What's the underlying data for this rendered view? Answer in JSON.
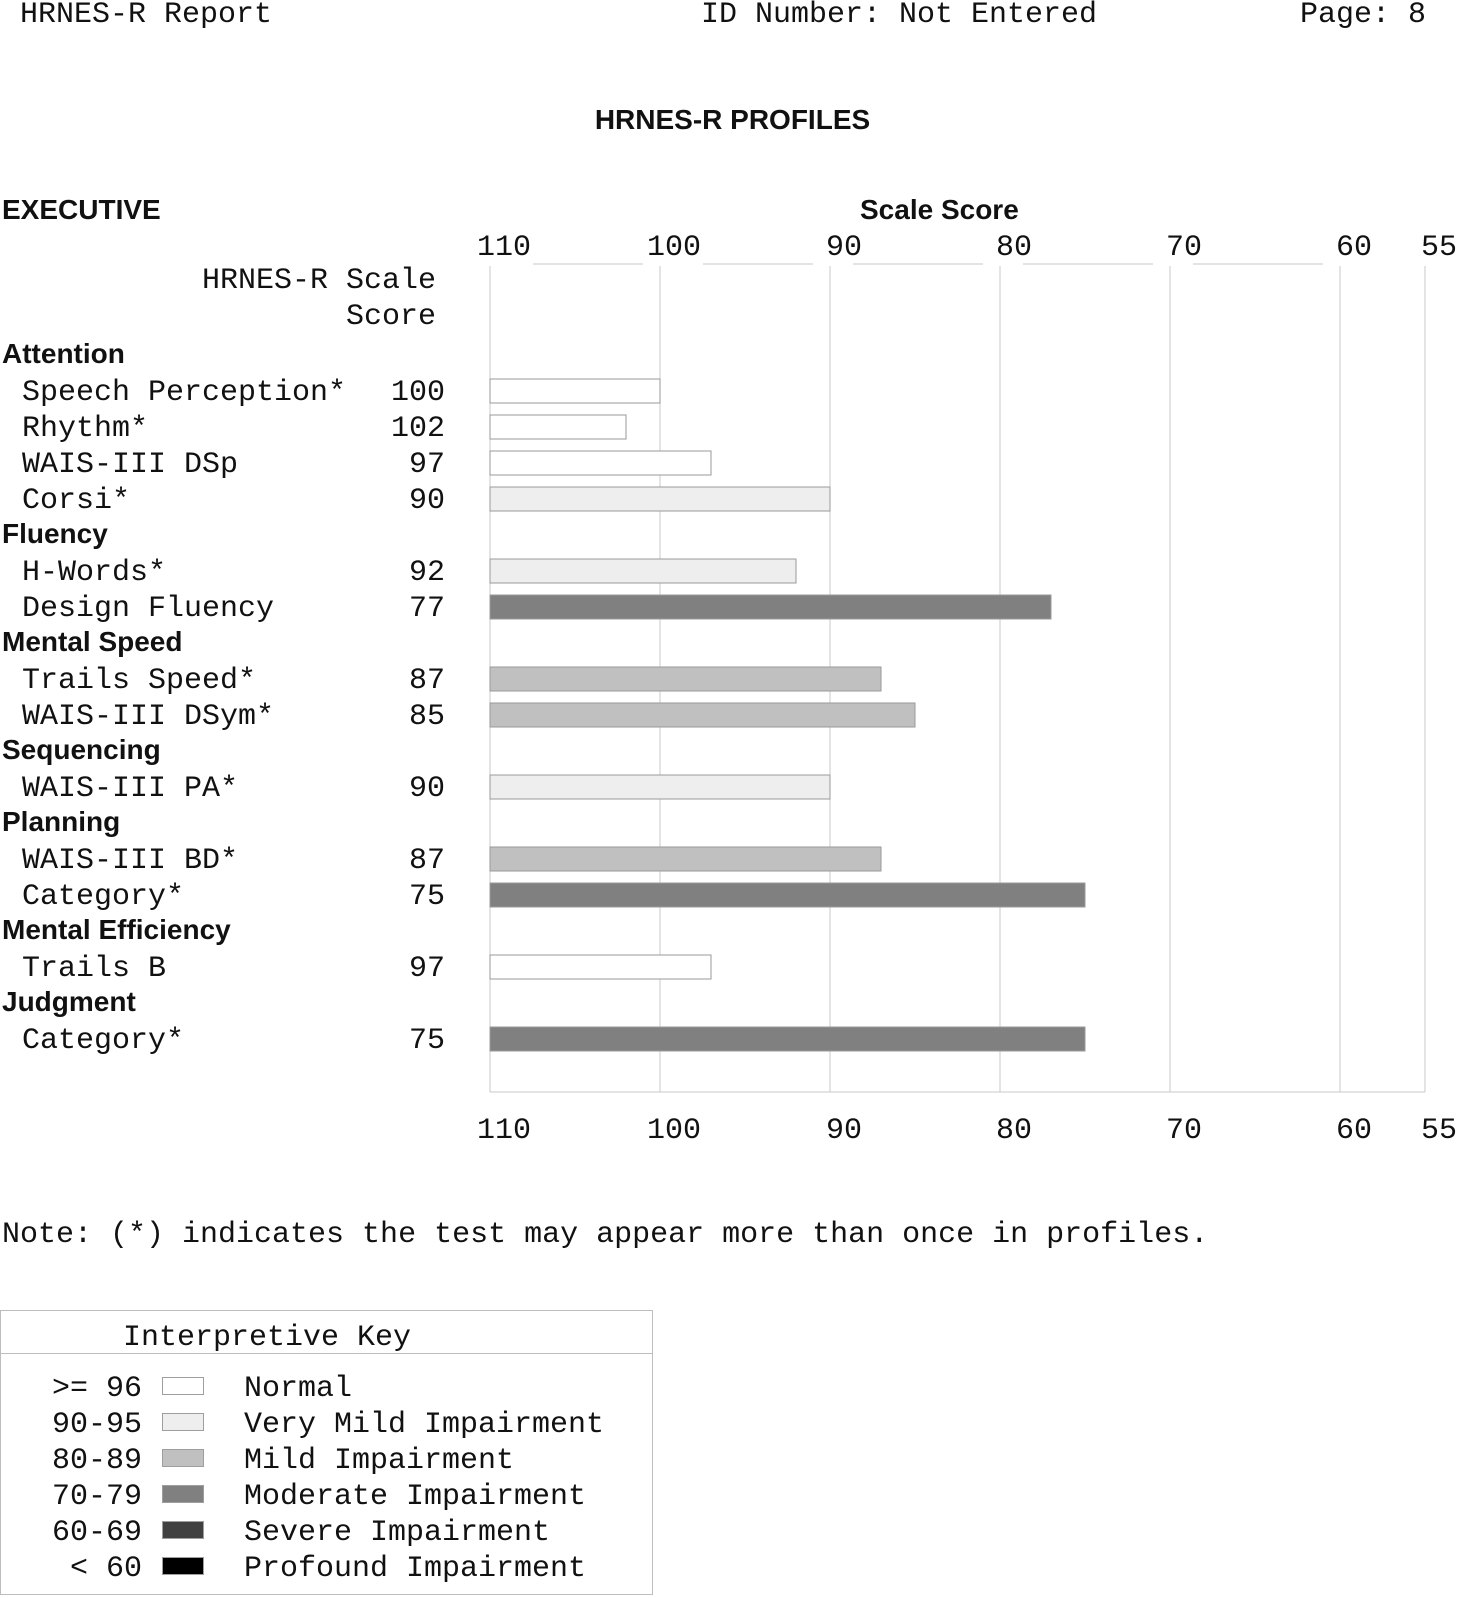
{
  "header": {
    "report": "HRNES-R Report",
    "id_label": "ID Number: Not Entered",
    "page_label": "Page: 8"
  },
  "title": "HRNES-R PROFILES",
  "section": "EXECUTIVE",
  "axis_title": "Scale Score",
  "column_header": [
    "HRNES-R Scale",
    "Score"
  ],
  "note": "Note: (*) indicates the test may appear more than once in profiles.",
  "colors": {
    "normal": "#ffffff",
    "very_mild": "#eeeeee",
    "mild": "#c0c0c0",
    "moderate": "#808080",
    "severe": "#404040",
    "profound": "#000000",
    "gridline": "#c8c8c8",
    "bar_border": "#9a9a9a"
  },
  "chart_data": {
    "type": "bar",
    "orientation": "horizontal",
    "x_axis": {
      "ticks": [
        110,
        100,
        90,
        80,
        70,
        60,
        55
      ],
      "min": 110,
      "max": 55,
      "reversed": true,
      "shown": [
        "top",
        "bottom"
      ]
    },
    "grid": true,
    "groups": [
      {
        "name": "Attention",
        "items": [
          {
            "label": "Speech Perception*",
            "value": 100
          },
          {
            "label": "Rhythm*",
            "value": 102
          },
          {
            "label": "WAIS-III DSp",
            "value": 97
          },
          {
            "label": "Corsi*",
            "value": 90
          }
        ]
      },
      {
        "name": "Fluency",
        "items": [
          {
            "label": "H-Words*",
            "value": 92
          },
          {
            "label": "Design Fluency",
            "value": 77
          }
        ]
      },
      {
        "name": "Mental Speed",
        "items": [
          {
            "label": "Trails Speed*",
            "value": 87
          },
          {
            "label": "WAIS-III DSym*",
            "value": 85
          }
        ]
      },
      {
        "name": "Sequencing",
        "items": [
          {
            "label": "WAIS-III PA*",
            "value": 90
          }
        ]
      },
      {
        "name": "Planning",
        "items": [
          {
            "label": "WAIS-III BD*",
            "value": 87
          },
          {
            "label": "Category*",
            "value": 75
          }
        ]
      },
      {
        "name": "Mental Efficiency",
        "items": [
          {
            "label": "Trails B",
            "value": 97
          }
        ]
      },
      {
        "name": "Judgment",
        "items": [
          {
            "label": "Category*",
            "value": 75
          }
        ]
      }
    ]
  },
  "key": {
    "title": "Interpretive Key",
    "entries": [
      {
        "range": ">= 96",
        "label": "Normal",
        "color": "#ffffff"
      },
      {
        "range": "90-95",
        "label": "Very Mild Impairment",
        "color": "#eeeeee"
      },
      {
        "range": "80-89",
        "label": "Mild Impairment",
        "color": "#c0c0c0"
      },
      {
        "range": "70-79",
        "label": "Moderate Impairment",
        "color": "#808080"
      },
      {
        "range": "60-69",
        "label": "Severe Impairment",
        "color": "#404040"
      },
      {
        "range": "< 60",
        "label": "Profound Impairment",
        "color": "#000000"
      }
    ]
  }
}
